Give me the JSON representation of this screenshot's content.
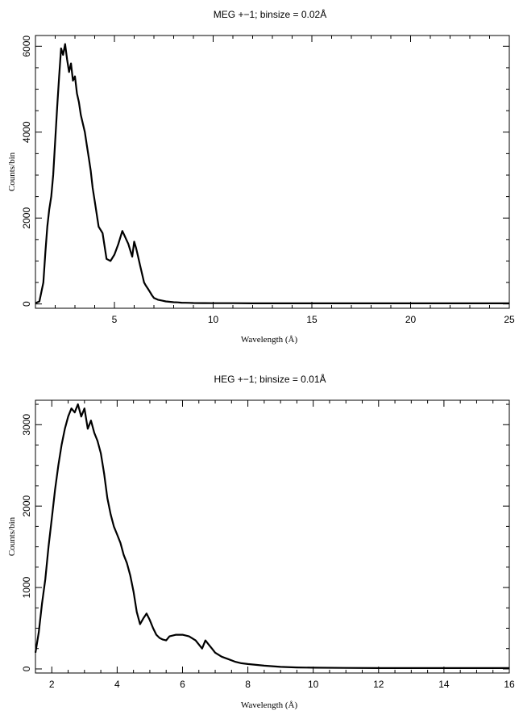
{
  "chart_data": [
    {
      "type": "line",
      "title": "MEG +−1; binsize = 0.02Å",
      "xlabel": "Wavelength (Å)",
      "ylabel": "Counts/bin",
      "xlim": [
        1.0,
        25.0
      ],
      "ylim": [
        -100,
        6250
      ],
      "x_ticks": [
        5,
        10,
        15,
        20,
        25
      ],
      "y_ticks": [
        0,
        2000,
        4000,
        6000
      ],
      "x_minor_step": 1,
      "y_minor_step": 500,
      "grid": false,
      "legend": "none",
      "series": [
        {
          "x": [
            1.0,
            1.2,
            1.4,
            1.5,
            1.6,
            1.7,
            1.8,
            1.9,
            2.0,
            2.1,
            2.2,
            2.3,
            2.4,
            2.5,
            2.6,
            2.7,
            2.8,
            2.9,
            3.0,
            3.1,
            3.2,
            3.3,
            3.4,
            3.5,
            3.6,
            3.7,
            3.8,
            3.9,
            4.0,
            4.2,
            4.4,
            4.6,
            4.8,
            5.0,
            5.2,
            5.4,
            5.5,
            5.6,
            5.7,
            5.8,
            5.9,
            6.0,
            6.1,
            6.2,
            6.3,
            6.4,
            6.5,
            6.6,
            6.7,
            6.8,
            6.9,
            7.0,
            7.2,
            7.4,
            7.6,
            7.8,
            8.0,
            8.2,
            8.4,
            8.6,
            8.8,
            9.0,
            9.5,
            10.0,
            11.0,
            12.0,
            14.0,
            16.0,
            18.0,
            20.0,
            22.0,
            24.0,
            25.0
          ],
          "y": [
            20,
            60,
            500,
            1200,
            1800,
            2200,
            2500,
            3000,
            3800,
            4600,
            5300,
            5950,
            5800,
            6050,
            5700,
            5400,
            5600,
            5200,
            5300,
            4900,
            4700,
            4400,
            4200,
            4000,
            3700,
            3400,
            3100,
            2700,
            2400,
            1800,
            1650,
            1050,
            1000,
            1150,
            1400,
            1700,
            1600,
            1500,
            1400,
            1250,
            1100,
            1450,
            1300,
            1100,
            900,
            700,
            500,
            420,
            350,
            280,
            200,
            140,
            100,
            80,
            60,
            50,
            40,
            38,
            30,
            28,
            25,
            22,
            20,
            18,
            18,
            15,
            15,
            15,
            15,
            15,
            15,
            15,
            15
          ]
        }
      ]
    },
    {
      "type": "line",
      "title": "HEG +−1; binsize = 0.01Å",
      "xlabel": "Wavelength (Å)",
      "ylabel": "Counts/bin",
      "xlim": [
        1.5,
        16.0
      ],
      "ylim": [
        -50,
        3300
      ],
      "x_ticks": [
        2,
        4,
        6,
        8,
        10,
        12,
        14,
        16
      ],
      "y_ticks": [
        0,
        1000,
        2000,
        3000
      ],
      "x_minor_step": 0.5,
      "y_minor_step": 250,
      "grid": false,
      "legend": "none",
      "series": [
        {
          "x": [
            1.5,
            1.6,
            1.7,
            1.8,
            1.9,
            2.0,
            2.1,
            2.2,
            2.3,
            2.4,
            2.5,
            2.6,
            2.7,
            2.8,
            2.9,
            3.0,
            3.1,
            3.2,
            3.3,
            3.4,
            3.5,
            3.6,
            3.7,
            3.8,
            3.9,
            4.0,
            4.1,
            4.2,
            4.3,
            4.4,
            4.5,
            4.6,
            4.7,
            4.8,
            4.9,
            5.0,
            5.1,
            5.2,
            5.3,
            5.4,
            5.5,
            5.6,
            5.8,
            6.0,
            6.2,
            6.4,
            6.5,
            6.6,
            6.7,
            6.8,
            6.9,
            7.0,
            7.2,
            7.4,
            7.6,
            7.8,
            8.0,
            8.5,
            9.0,
            9.5,
            10.0,
            11.0,
            12.0,
            14.0,
            16.0
          ],
          "y": [
            200,
            450,
            800,
            1100,
            1500,
            1850,
            2200,
            2500,
            2750,
            2950,
            3100,
            3200,
            3150,
            3250,
            3100,
            3200,
            2950,
            3050,
            2900,
            2800,
            2650,
            2400,
            2100,
            1900,
            1750,
            1650,
            1550,
            1400,
            1300,
            1150,
            950,
            700,
            550,
            620,
            680,
            600,
            500,
            420,
            380,
            360,
            350,
            400,
            420,
            420,
            400,
            350,
            300,
            250,
            350,
            300,
            250,
            200,
            150,
            120,
            90,
            70,
            60,
            40,
            25,
            18,
            15,
            12,
            10,
            10,
            10
          ]
        }
      ]
    }
  ]
}
